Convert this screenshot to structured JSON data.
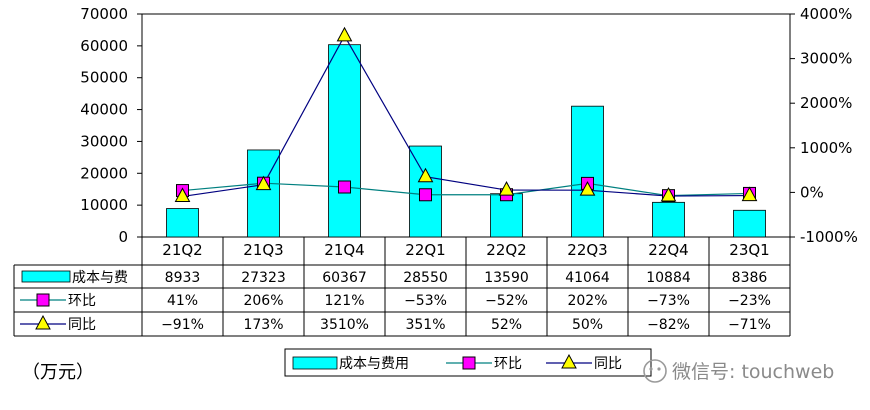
{
  "chart_data": {
    "type": "bar",
    "categories": [
      "21Q2",
      "21Q3",
      "21Q4",
      "22Q1",
      "22Q2",
      "22Q3",
      "22Q4",
      "23Q1"
    ],
    "series": [
      {
        "name": "成本与费用",
        "type": "bar",
        "axis": "left",
        "values": [
          8933,
          27323,
          60367,
          28550,
          13590,
          41064,
          10884,
          8386
        ],
        "color": "#00FFFF",
        "table_label": "成本与费"
      },
      {
        "name": "环比",
        "type": "line",
        "axis": "right",
        "values": [
          41,
          206,
          121,
          -53,
          -52,
          202,
          -73,
          -23
        ],
        "display": [
          "41%",
          "206%",
          "121%",
          "−53%",
          "−52%",
          "202%",
          "−73%",
          "−23%"
        ],
        "color": "#FF00FF",
        "line_color": "#008080",
        "marker": "square"
      },
      {
        "name": "同比",
        "type": "line",
        "axis": "right",
        "values": [
          -91,
          173,
          3510,
          351,
          52,
          50,
          -82,
          -71
        ],
        "display": [
          "−91%",
          "173%",
          "3510%",
          "351%",
          "52%",
          "50%",
          "−82%",
          "−71%"
        ],
        "color": "#FFFF00",
        "line_color": "#000080",
        "marker": "triangle"
      }
    ],
    "y_left": {
      "ylim": [
        0,
        70000
      ],
      "ticks": [
        "70000",
        "60000",
        "50000",
        "40000",
        "30000",
        "20000",
        "10000",
        "0"
      ]
    },
    "y_right": {
      "ylim": [
        -1000,
        4000
      ],
      "unit": "%",
      "ticks": [
        "4000%",
        "3000%",
        "2000%",
        "1000%",
        "0%",
        "-1000%"
      ]
    },
    "grid": false,
    "legend_position": "bottom"
  },
  "unit_label": "（万元）",
  "watermark": "微信号: touchweb"
}
